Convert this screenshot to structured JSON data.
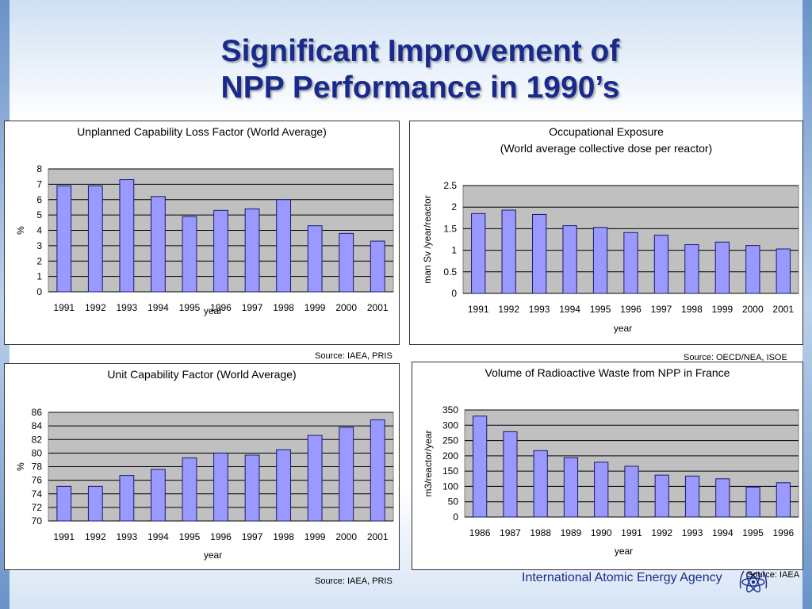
{
  "slide": {
    "title_line1": "Significant Improvement of",
    "title_line2": "NPP Performance in 1990’s",
    "footer_org": "International Atomic Energy Agency",
    "footer_source": "Source: IAEA"
  },
  "sources": {
    "panel1": "Source: IAEA, PRIS",
    "panel2": "Source: OECD/NEA, ISOE",
    "panel3": "Source: IAEA, PRIS"
  },
  "colors": {
    "bar_fill": "#9999ff",
    "bar_stroke": "#1a1a66",
    "plot_bg": "#c0c0c0",
    "title_color": "#1a2a8c"
  },
  "chart_data": [
    {
      "type": "bar",
      "title": "Unplanned Capability Loss Factor (World Average)",
      "subtitle": "",
      "xlabel": "year",
      "ylabel": "%",
      "categories": [
        "1991",
        "1992",
        "1993",
        "1994",
        "1995",
        "1996",
        "1997",
        "1998",
        "1999",
        "2000",
        "2001"
      ],
      "values": [
        6.9,
        6.9,
        7.3,
        6.2,
        4.9,
        5.3,
        5.4,
        6.0,
        4.3,
        3.8,
        3.3
      ],
      "ylim": [
        0,
        8
      ],
      "yticks": [
        "0",
        "1",
        "2",
        "3",
        "4",
        "5",
        "6",
        "7",
        "8"
      ],
      "ytick_values": [
        0,
        1,
        2,
        3,
        4,
        5,
        6,
        7,
        8
      ],
      "grid": true
    },
    {
      "type": "bar",
      "title": "Occupational Exposure",
      "subtitle": "(World average collective dose per reactor)",
      "xlabel": "year",
      "ylabel": "man Sv /year/reactor",
      "categories": [
        "1991",
        "1992",
        "1993",
        "1994",
        "1995",
        "1996",
        "1997",
        "1998",
        "1999",
        "2000",
        "2001"
      ],
      "values": [
        1.85,
        1.93,
        1.83,
        1.57,
        1.53,
        1.41,
        1.35,
        1.13,
        1.19,
        1.11,
        1.03
      ],
      "ylim": [
        0,
        2.5
      ],
      "yticks": [
        "0",
        "0.5",
        "1",
        "1.5",
        "2",
        "2.5"
      ],
      "ytick_values": [
        0,
        0.5,
        1,
        1.5,
        2,
        2.5
      ],
      "grid": true
    },
    {
      "type": "bar",
      "title": "Unit Capability Factor (World Average)",
      "subtitle": "",
      "xlabel": "year",
      "ylabel": "%",
      "categories": [
        "1991",
        "1992",
        "1993",
        "1994",
        "1995",
        "1996",
        "1997",
        "1998",
        "1999",
        "2000",
        "2001"
      ],
      "values": [
        75.1,
        75.1,
        76.7,
        77.6,
        79.3,
        80.0,
        79.7,
        80.5,
        82.6,
        83.8,
        84.9
      ],
      "ylim": [
        70,
        86
      ],
      "yticks": [
        "70",
        "72",
        "74",
        "76",
        "78",
        "80",
        "82",
        "84",
        "86"
      ],
      "ytick_values": [
        70,
        72,
        74,
        76,
        78,
        80,
        82,
        84,
        86
      ],
      "grid": true
    },
    {
      "type": "bar",
      "title": "Volume of Radioactive Waste from NPP in France",
      "subtitle": "",
      "xlabel": "year",
      "ylabel": "m3/reactor/year",
      "categories": [
        "1986",
        "1987",
        "1988",
        "1989",
        "1990",
        "1991",
        "1992",
        "1993",
        "1994",
        "1995",
        "1996"
      ],
      "values": [
        330,
        279,
        217,
        194,
        179,
        166,
        137,
        134,
        125,
        98,
        112
      ],
      "ylim": [
        0,
        350
      ],
      "yticks": [
        "0",
        "50",
        "100",
        "150",
        "200",
        "250",
        "300",
        "350"
      ],
      "ytick_values": [
        0,
        50,
        100,
        150,
        200,
        250,
        300,
        350
      ],
      "grid": true
    }
  ]
}
